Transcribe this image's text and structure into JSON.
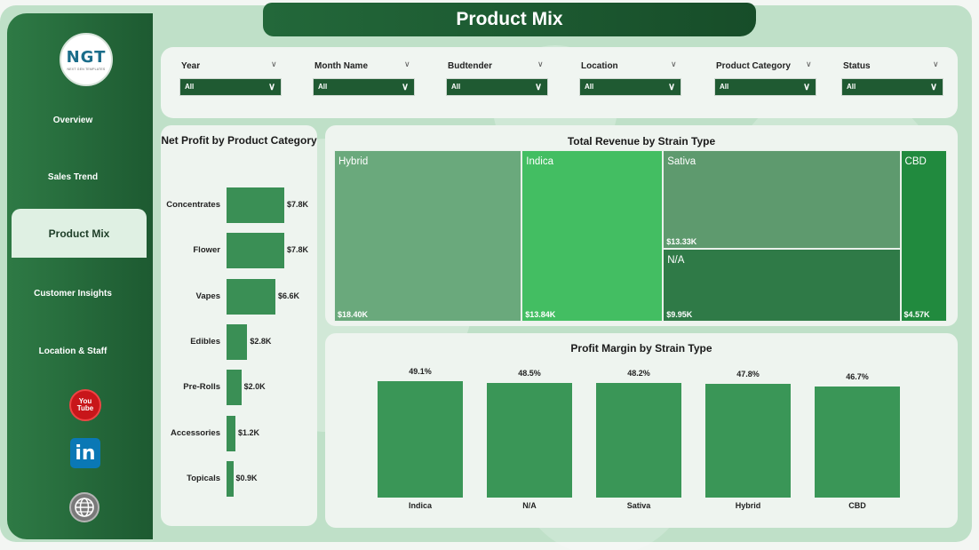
{
  "app": {
    "page_title": "Product Mix",
    "logo": {
      "text": "NGT",
      "subtitle": "NEXT GEN TEMPLATES"
    }
  },
  "sidebar": {
    "items": [
      {
        "label": "Overview",
        "active": false
      },
      {
        "label": "Sales Trend",
        "active": false
      },
      {
        "label": "Product Mix",
        "active": true
      },
      {
        "label": "Customer Insights",
        "active": false
      },
      {
        "label": "Location & Staff",
        "active": false
      }
    ],
    "social": [
      {
        "icon": "youtube-icon",
        "label": "You Tube"
      },
      {
        "icon": "linkedin-icon",
        "label": "in"
      },
      {
        "icon": "globe-icon",
        "label": ""
      }
    ]
  },
  "filters": [
    {
      "label": "Year",
      "value": "All"
    },
    {
      "label": "Month Name",
      "value": "All"
    },
    {
      "label": "Budtender",
      "value": "All"
    },
    {
      "label": "Location",
      "value": "All"
    },
    {
      "label": "Product Category",
      "value": "All"
    },
    {
      "label": "Status",
      "value": "All"
    }
  ],
  "colors": {
    "sidebar": "#1d5a31",
    "accent": "#3a8f55",
    "background": "#bfe0c8"
  },
  "chart_data": [
    {
      "type": "bar",
      "orientation": "horizontal",
      "title": "Net Profit by Product Category",
      "categories": [
        "Concentrates",
        "Flower",
        "Vapes",
        "Edibles",
        "Pre-Rolls",
        "Accessories",
        "Topicals"
      ],
      "values": [
        7.8,
        7.8,
        6.6,
        2.8,
        2.0,
        1.2,
        0.9
      ],
      "labels": [
        "$7.8K",
        "$7.8K",
        "$6.6K",
        "$2.8K",
        "$2.0K",
        "$1.2K",
        "$0.9K"
      ]
    },
    {
      "type": "treemap",
      "title": "Total Revenue by Strain Type",
      "categories": [
        "Hybrid",
        "Indica",
        "Sativa",
        "N/A",
        "CBD"
      ],
      "values": [
        18.4,
        13.84,
        13.33,
        9.95,
        4.57
      ],
      "labels": [
        "$18.40K",
        "$13.84K",
        "$13.33K",
        "$9.95K",
        "$4.57K"
      ]
    },
    {
      "type": "bar",
      "title": "Profit Margin by Strain Type",
      "categories": [
        "Indica",
        "N/A",
        "Sativa",
        "Hybrid",
        "CBD"
      ],
      "values": [
        49.1,
        48.5,
        48.2,
        47.8,
        46.7
      ],
      "labels": [
        "49.1%",
        "48.5%",
        "48.2%",
        "47.8%",
        "46.7%"
      ]
    }
  ]
}
